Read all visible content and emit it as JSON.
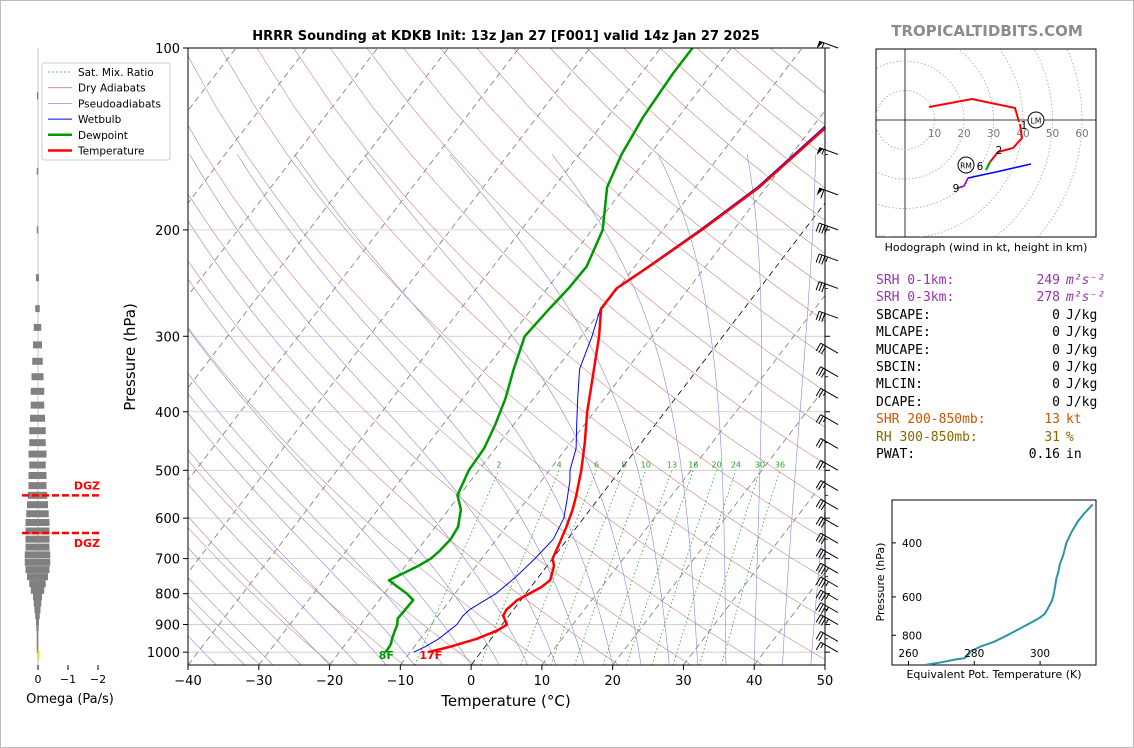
{
  "title": "HRRR Sounding at KDKB Init: 13z Jan 27 [F001] valid 14z Jan 27 2025",
  "brand": "TROPICALTIDBITS.COM",
  "chart_data": [
    {
      "id": "skewt",
      "type": "line",
      "xlabel": "Temperature (°C)",
      "ylabel": "Pressure (hPa)",
      "xlim": [
        -40,
        50
      ],
      "ylim": [
        1050,
        100
      ],
      "yscale": "log",
      "xticks": [
        -40,
        -30,
        -20,
        -10,
        0,
        10,
        20,
        30,
        40,
        50
      ],
      "xtick_labels": [
        "−40",
        "−30",
        "−20",
        "−10",
        "0",
        "10",
        "20",
        "30",
        "40",
        "50"
      ],
      "yticks": [
        100,
        200,
        300,
        400,
        500,
        600,
        700,
        800,
        900,
        1000
      ],
      "ytick_labels": [
        "100",
        "200",
        "300",
        "400",
        "500",
        "600",
        "700",
        "800",
        "900",
        "1000"
      ],
      "legend": [
        "Sat. Mix. Ratio",
        "Dry Adiabats",
        "Pseudoadiabats",
        "Wetbulb",
        "Dewpoint",
        "Temperature"
      ],
      "legend_position": "upper-left",
      "series": [
        {
          "name": "Temperature",
          "color": "#ff0000",
          "p": [
            1000,
            980,
            950,
            920,
            900,
            870,
            850,
            820,
            800,
            780,
            760,
            720,
            700,
            660,
            620,
            580,
            550,
            500,
            450,
            400,
            350,
            300,
            270,
            250,
            230,
            200,
            170,
            140,
            120,
            100
          ],
          "t": [
            -7.5,
            -5,
            -2,
            0,
            0.7,
            -0.8,
            -1,
            -0.5,
            0.5,
            1.5,
            2,
            1,
            0,
            -0.7,
            -1.5,
            -2.5,
            -3.5,
            -5.5,
            -8,
            -11,
            -14,
            -17.5,
            -20.2,
            -20.2,
            -18,
            -14.5,
            -11,
            -8.5,
            -6.5,
            -5.5
          ]
        },
        {
          "name": "Dewpoint",
          "color": "#009900",
          "p": [
            1000,
            985,
            970,
            950,
            920,
            900,
            880,
            850,
            820,
            800,
            780,
            760,
            740,
            720,
            700,
            680,
            650,
            620,
            580,
            550,
            500,
            460,
            420,
            380,
            340,
            300,
            270,
            250,
            230,
            200,
            170,
            150,
            130,
            110,
            100
          ],
          "t": [
            -13.5,
            -13.5,
            -13.6,
            -14,
            -14.5,
            -14.8,
            -15.4,
            -15.3,
            -15.2,
            -16.8,
            -18.8,
            -20.8,
            -19.5,
            -18.2,
            -17.2,
            -16.8,
            -16.5,
            -16.8,
            -18.3,
            -20.3,
            -21.4,
            -21.6,
            -22.6,
            -24,
            -26,
            -28,
            -27.5,
            -27,
            -26.8,
            -28.5,
            -32.5,
            -34,
            -35,
            -35.5,
            -35.5
          ]
        },
        {
          "name": "Wetbulb",
          "color": "#0000ff",
          "p": [
            1000,
            980,
            950,
            920,
            900,
            870,
            850,
            800,
            750,
            700,
            650,
            600,
            560,
            520,
            500,
            460,
            420,
            380,
            340,
            300,
            270,
            250,
            230,
            200,
            170,
            140,
            120,
            100
          ],
          "t": [
            -9.5,
            -8.5,
            -7.4,
            -6.8,
            -6.4,
            -6.5,
            -6.2,
            -4.2,
            -3.2,
            -2.5,
            -2,
            -2.8,
            -4.3,
            -6,
            -7.1,
            -8.6,
            -11.1,
            -13.8,
            -16.7,
            -18.5,
            -20.3,
            -20.3,
            -18.2,
            -14.8,
            -11.3,
            -8.8,
            -7,
            -6
          ]
        }
      ],
      "sat_mix_labels": [
        "2",
        "4",
        "6",
        "8",
        "10",
        "13",
        "16",
        "20",
        "24",
        "30",
        "36"
      ],
      "surface_labels": [
        "8F",
        "17F"
      ],
      "wind_barbs": {
        "p": [
          100,
          150,
          175,
          200,
          225,
          250,
          280,
          320,
          350,
          380,
          420,
          460,
          500,
          540,
          580,
          620,
          660,
          700,
          740,
          780,
          820,
          860,
          900,
          960,
          1000
        ],
        "speed_kt": [
          55,
          55,
          60,
          40,
          35,
          30,
          30,
          30,
          30,
          25,
          25,
          20,
          25,
          25,
          30,
          30,
          30,
          30,
          35,
          35,
          35,
          35,
          35,
          20,
          15
        ]
      }
    },
    {
      "id": "omega",
      "type": "bar",
      "xlabel": "Omega (Pa/s)",
      "xticks": [
        0,
        -1,
        -2
      ],
      "xtick_labels": [
        "0",
        "−1",
        "−2"
      ],
      "p": [
        120,
        160,
        200,
        240,
        270,
        290,
        310,
        330,
        350,
        370,
        390,
        410,
        430,
        450,
        470,
        490,
        510,
        530,
        550,
        570,
        590,
        610,
        630,
        650,
        670,
        690,
        710,
        730,
        750,
        770,
        790,
        810,
        830,
        850,
        870,
        890,
        910,
        930,
        950,
        970,
        990
      ],
      "omega": [
        -0.04,
        -0.05,
        -0.05,
        -0.1,
        -0.15,
        -0.25,
        -0.3,
        -0.35,
        -0.4,
        -0.45,
        -0.45,
        -0.5,
        -0.55,
        -0.55,
        -0.6,
        -0.55,
        -0.6,
        -0.6,
        -0.65,
        -0.7,
        -0.75,
        -0.8,
        -0.8,
        -0.8,
        -0.8,
        -0.85,
        -0.85,
        -0.8,
        -0.7,
        -0.55,
        -0.45,
        -0.3,
        -0.25,
        -0.2,
        -0.15,
        -0.1,
        -0.08,
        -0.05,
        -0.05,
        -0.05,
        -0.05
      ],
      "dgz": {
        "label": "DGZ",
        "p_top": 550,
        "p_bottom": 635
      }
    },
    {
      "id": "hodograph",
      "type": "line",
      "caption": "Hodograph (wind in kt, height in km)",
      "ring_labels": [
        "10",
        "20",
        "30",
        "40",
        "50",
        "60"
      ],
      "height_labels": [
        "1",
        "2",
        "6",
        "9"
      ],
      "motion_labels": [
        "LM",
        "RM"
      ],
      "trace_u": [
        43,
        39,
        35,
        30,
        26,
        22,
        18,
        14,
        10,
        8
      ],
      "trace_v": [
        -8,
        -3,
        2,
        5,
        8,
        12,
        15,
        17,
        19,
        21
      ],
      "trace_colors": [
        "#0000ff",
        "#0000ff",
        "#0000ff",
        "#0000ff",
        "#0000ff",
        "#0000ff",
        "#0000ff",
        "#9900cc",
        "#9900cc",
        "#009900"
      ]
    },
    {
      "id": "thetae",
      "type": "line",
      "xlabel": "Equivalent Pot. Temperature (K)",
      "ylabel": "Pressure (hPa)",
      "xticks": [
        260,
        280,
        300
      ],
      "xtick_labels": [
        "260",
        "280",
        "300"
      ],
      "yticks": [
        400,
        600,
        800
      ],
      "ytick_labels": [
        "400",
        "600",
        "800"
      ],
      "xlim": [
        255,
        317
      ],
      "ylim": [
        1000,
        290
      ],
      "p": [
        1000,
        980,
        960,
        950,
        930,
        900,
        870,
        840,
        800,
        760,
        720,
        700,
        680,
        650,
        620,
        600,
        560,
        520,
        500,
        470,
        440,
        400,
        370,
        340,
        320,
        300
      ],
      "theta_e": [
        265,
        270,
        274,
        277,
        278,
        279,
        282,
        286,
        290,
        294,
        298,
        300,
        301.5,
        302.5,
        303.5,
        304,
        304.5,
        305,
        305.5,
        306,
        307,
        308,
        309.5,
        311.5,
        313.5,
        316
      ]
    }
  ],
  "params": [
    {
      "label": "SRH 0-1km:",
      "value": "249",
      "unit": "m²s⁻²",
      "color": "#9933aa"
    },
    {
      "label": "SRH 0-3km:",
      "value": "278",
      "unit": "m²s⁻²",
      "color": "#9933aa"
    },
    {
      "label": "SBCAPE:",
      "value": "0",
      "unit": "J/kg",
      "color": "#000000"
    },
    {
      "label": "MLCAPE:",
      "value": "0",
      "unit": "J/kg",
      "color": "#000000"
    },
    {
      "label": "MUCAPE:",
      "value": "0",
      "unit": "J/kg",
      "color": "#000000"
    },
    {
      "label": "SBCIN:",
      "value": "0",
      "unit": "J/kg",
      "color": "#000000"
    },
    {
      "label": "MLCIN:",
      "value": "0",
      "unit": "J/kg",
      "color": "#000000"
    },
    {
      "label": "DCAPE:",
      "value": "0",
      "unit": "J/kg",
      "color": "#000000"
    },
    {
      "label": "SHR 200-850mb:",
      "value": "13",
      "unit": "kt",
      "color": "#cc5500"
    },
    {
      "label": "RH 300-850mb:",
      "value": "31",
      "unit": "%",
      "color": "#886600"
    },
    {
      "label": "PWAT:",
      "value": "0.16",
      "unit": "in",
      "color": "#000000"
    }
  ]
}
